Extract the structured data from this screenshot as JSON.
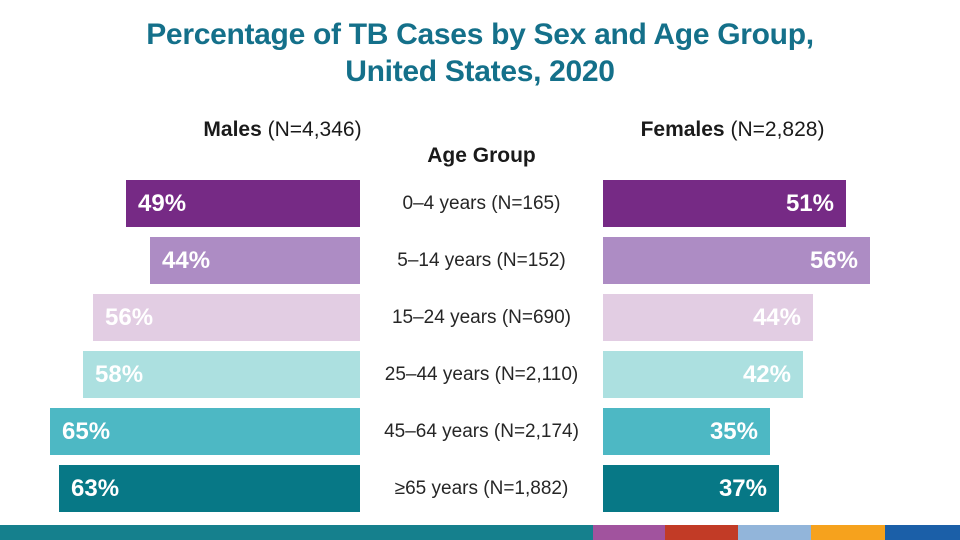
{
  "title": {
    "line1": "Percentage of TB Cases by Sex and Age Group,",
    "line2": "United States, 2020"
  },
  "headers": {
    "males_label": "Males",
    "males_n": "(N=4,346)",
    "females_label": "Females",
    "females_n": "(N=2,828)",
    "age_group": "Age Group"
  },
  "chart_data": {
    "type": "bar",
    "variant": "diverging-horizontal (population-pyramid style)",
    "title": "Percentage of TB Cases by Sex and Age Group, United States, 2020",
    "categories": [
      "0–4 years (N=165)",
      "5–14 years (N=152)",
      "15–24 years (N=690)",
      "25–44 years (N=2,110)",
      "45–64 years (N=2,174)",
      "≥65 years (N=1,882)"
    ],
    "series": [
      {
        "name": "Males",
        "total": "N=4,346",
        "values": [
          49,
          44,
          56,
          58,
          65,
          63
        ]
      },
      {
        "name": "Females",
        "total": "N=2,828",
        "values": [
          51,
          56,
          44,
          42,
          35,
          37
        ]
      }
    ],
    "value_unit": "%",
    "category_counts": [
      165,
      152,
      690,
      2110,
      2174,
      1882
    ],
    "row_colors": [
      "#762a85",
      "#ad8cc4",
      "#e2cde3",
      "#ace0e0",
      "#4db8c4",
      "#077886"
    ],
    "grid": false,
    "legend_position": "column-headers",
    "xlim_each_side": [
      0,
      70
    ]
  },
  "rows": [
    {
      "male_pct": "49%",
      "male_val": 49,
      "label": "0–4 years (N=165)",
      "female_pct": "51%",
      "female_val": 51,
      "color": "#762a85"
    },
    {
      "male_pct": "44%",
      "male_val": 44,
      "label": "5–14 years (N=152)",
      "female_pct": "56%",
      "female_val": 56,
      "color": "#ad8cc4"
    },
    {
      "male_pct": "56%",
      "male_val": 56,
      "label": "15–24 years (N=690)",
      "female_pct": "44%",
      "female_val": 44,
      "color": "#e2cde3"
    },
    {
      "male_pct": "58%",
      "male_val": 58,
      "label": "25–44 years (N=2,110)",
      "female_pct": "42%",
      "female_val": 42,
      "color": "#ace0e0"
    },
    {
      "male_pct": "65%",
      "male_val": 65,
      "label": "45–64 years (N=2,174)",
      "female_pct": "35%",
      "female_val": 35,
      "color": "#4db8c4"
    },
    {
      "male_pct": "63%",
      "male_val": 63,
      "label": "≥65 years (N=1,882)",
      "female_pct": "37%",
      "female_val": 37,
      "color": "#077886"
    }
  ],
  "colors": {
    "title": "#14708a",
    "label_text": "#262626",
    "bar_value_text": "#ffffff"
  },
  "footer_strip": {
    "segments": [
      {
        "name": "teal",
        "color": "#15808d"
      },
      {
        "name": "purple",
        "color": "#a1539e"
      },
      {
        "name": "red",
        "color": "#c23b26"
      },
      {
        "name": "light-blue",
        "color": "#92b5da"
      },
      {
        "name": "orange",
        "color": "#f6a21d"
      },
      {
        "name": "dark-blue",
        "color": "#1b5fa8"
      }
    ]
  }
}
